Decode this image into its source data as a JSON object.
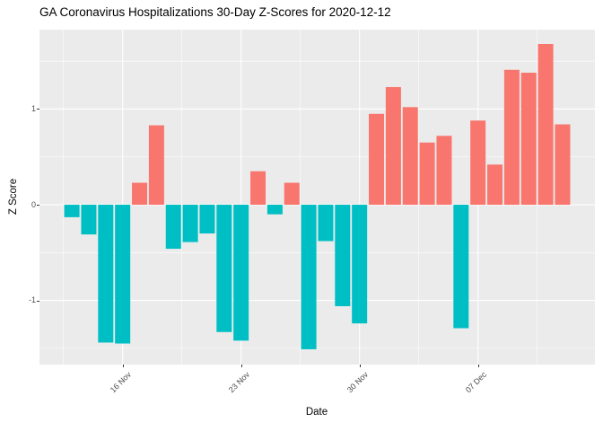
{
  "chart_data": {
    "type": "bar",
    "title": "GA Coronavirus Hospitalizations 30-Day Z-Scores for 2020-12-12",
    "xlabel": "Date",
    "ylabel": "Z Score",
    "legend": "none",
    "grid": "on",
    "panel_bg": "#EBEBEB",
    "grid_major_color": "#FFFFFF",
    "grid_minor_color": "#FFFFFF",
    "positive_color": "#F8766D",
    "negative_color": "#00BFC4",
    "axis_text_color": "#4d4d4d",
    "ylim": [
      -1.67,
      1.83
    ],
    "y_tick_values": [
      1,
      0,
      -1
    ],
    "y_tick_labels": [
      "1",
      "0",
      "-1"
    ],
    "y_minor_values": [
      1.5,
      0.5,
      -0.5,
      -1.5
    ],
    "x_tick_dates": [
      "2020-11-16",
      "2020-11-23",
      "2020-11-30",
      "2020-12-07"
    ],
    "x_tick_labels": [
      "16 Nov",
      "23 Nov",
      "30 Nov",
      "07 Dec"
    ],
    "dates": [
      "2020-11-13",
      "2020-11-14",
      "2020-11-15",
      "2020-11-16",
      "2020-11-17",
      "2020-11-18",
      "2020-11-19",
      "2020-11-20",
      "2020-11-21",
      "2020-11-22",
      "2020-11-23",
      "2020-11-24",
      "2020-11-25",
      "2020-11-26",
      "2020-11-27",
      "2020-11-28",
      "2020-11-29",
      "2020-11-30",
      "2020-12-01",
      "2020-12-02",
      "2020-12-03",
      "2020-12-04",
      "2020-12-05",
      "2020-12-06",
      "2020-12-07",
      "2020-12-08",
      "2020-12-09",
      "2020-12-10",
      "2020-12-11",
      "2020-12-12"
    ],
    "values": [
      -0.13,
      -0.31,
      -1.44,
      -1.45,
      0.23,
      0.83,
      -0.46,
      -0.39,
      -0.3,
      -1.33,
      -1.42,
      0.35,
      -0.1,
      0.23,
      -1.51,
      -0.38,
      -1.06,
      -1.24,
      0.95,
      1.23,
      1.02,
      0.65,
      0.72,
      -1.29,
      0.88,
      0.42,
      1.41,
      1.38,
      1.68,
      0.84
    ]
  }
}
